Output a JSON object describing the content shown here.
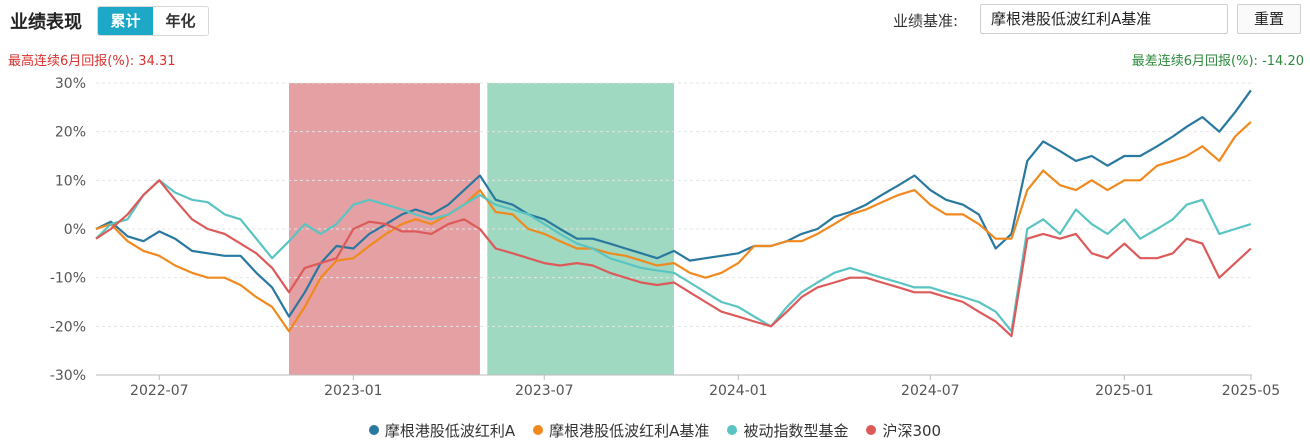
{
  "header": {
    "title": "业绩表现",
    "tabs": [
      {
        "label": "累计",
        "active": true
      },
      {
        "label": "年化",
        "active": false
      }
    ],
    "benchmark_label": "业绩基准:",
    "benchmark_value": "摩根港股低波红利A基准",
    "reset_label": "重置"
  },
  "stats": {
    "best_label": "最高连续6月回报(%):",
    "best_value": "34.31",
    "worst_label": "最差连续6月回报(%):",
    "worst_value": "-14.20"
  },
  "colors": {
    "fund": "#2878a0",
    "bench": "#f0891e",
    "passive": "#5ac4c2",
    "hs300": "#dc5a5a",
    "best_band": "#d9777a",
    "worst_band": "#6cc59f"
  },
  "chart_data": {
    "type": "line",
    "ylim": [
      -30,
      30
    ],
    "yticks": [
      -30,
      -20,
      -10,
      0,
      10,
      20,
      30
    ],
    "ytick_labels": [
      "-30%",
      "-20%",
      "-10%",
      "0%",
      "10%",
      "20%",
      "30%"
    ],
    "xlim": [
      "2022-05-02",
      "2025-05-02"
    ],
    "xticks": [
      "2022-07",
      "2023-01",
      "2023-07",
      "2024-01",
      "2024-07",
      "2025-01",
      "2025-05"
    ],
    "xtick_dates": [
      "2022-07-01",
      "2023-01-01",
      "2023-07-01",
      "2024-01-01",
      "2024-07-01",
      "2025-01-01",
      "2025-05-01"
    ],
    "highlight_best": [
      "2022-11-01",
      "2023-05-01"
    ],
    "highlight_worst": [
      "2023-05-08",
      "2023-11-01"
    ],
    "dates": [
      "2022-05-02",
      "2022-05-16",
      "2022-06-01",
      "2022-06-16",
      "2022-07-01",
      "2022-07-16",
      "2022-08-01",
      "2022-08-16",
      "2022-09-01",
      "2022-09-16",
      "2022-10-01",
      "2022-10-16",
      "2022-11-01",
      "2022-11-16",
      "2022-12-01",
      "2022-12-16",
      "2023-01-01",
      "2023-01-16",
      "2023-02-01",
      "2023-02-16",
      "2023-03-01",
      "2023-03-16",
      "2023-04-01",
      "2023-04-16",
      "2023-05-01",
      "2023-05-16",
      "2023-06-01",
      "2023-06-16",
      "2023-07-01",
      "2023-07-16",
      "2023-08-01",
      "2023-08-16",
      "2023-09-01",
      "2023-09-16",
      "2023-10-01",
      "2023-10-16",
      "2023-11-01",
      "2023-11-16",
      "2023-12-01",
      "2023-12-16",
      "2024-01-01",
      "2024-01-16",
      "2024-02-01",
      "2024-02-16",
      "2024-03-01",
      "2024-03-16",
      "2024-04-01",
      "2024-04-16",
      "2024-05-01",
      "2024-05-16",
      "2024-06-01",
      "2024-06-16",
      "2024-07-01",
      "2024-07-16",
      "2024-08-01",
      "2024-08-16",
      "2024-09-01",
      "2024-09-16",
      "2024-10-01",
      "2024-10-16",
      "2024-11-01",
      "2024-11-16",
      "2024-12-01",
      "2024-12-16",
      "2025-01-01",
      "2025-01-16",
      "2025-02-01",
      "2025-02-16",
      "2025-03-01",
      "2025-03-16",
      "2025-04-01",
      "2025-04-16",
      "2025-05-01"
    ],
    "series": [
      {
        "name": "摩根港股低波红利A",
        "color": "#2878a0",
        "values": [
          0,
          1.5,
          -1.5,
          -2.5,
          -0.5,
          -2,
          -4.5,
          -5,
          -5.5,
          -5.5,
          -9,
          -12,
          -18,
          -13,
          -7,
          -3.5,
          -4,
          -1,
          1,
          3,
          4,
          3,
          5,
          8,
          11,
          6,
          5,
          3,
          2,
          0,
          -2,
          -2,
          -3,
          -4,
          -5,
          -6,
          -4.5,
          -6.5,
          -6,
          -5.5,
          -5,
          -3.5,
          -3.5,
          -2.5,
          -1,
          0,
          2.5,
          3.5,
          5,
          7,
          9,
          11,
          8,
          6,
          5,
          3,
          -4,
          -1,
          14,
          18,
          16,
          14,
          15,
          13,
          15,
          15,
          17,
          19,
          21,
          23,
          20,
          24,
          28.5
        ]
      },
      {
        "name": "摩根港股低波红利A基准",
        "color": "#f0891e",
        "values": [
          0,
          1,
          -2.5,
          -4.5,
          -5.5,
          -7.5,
          -9,
          -10,
          -10,
          -11.5,
          -14,
          -16,
          -21,
          -16,
          -10,
          -6.5,
          -6,
          -3.5,
          -1,
          1,
          2,
          1,
          3,
          5,
          8,
          3.5,
          3,
          0,
          -1,
          -2.5,
          -4,
          -4,
          -5,
          -5.5,
          -6.5,
          -7.5,
          -7,
          -9,
          -10,
          -9,
          -7,
          -3.5,
          -3.5,
          -2.5,
          -2.5,
          -1,
          1,
          3,
          4,
          5.5,
          7,
          8,
          5,
          3,
          3,
          1,
          -2,
          -2,
          8,
          12,
          9,
          8,
          10,
          8,
          10,
          10,
          13,
          14,
          15,
          17,
          14,
          19,
          22
        ]
      },
      {
        "name": "被动指数型基金",
        "color": "#5ac4c2",
        "values": [
          -2,
          1,
          2,
          7,
          10,
          7.5,
          6,
          5.5,
          3,
          2,
          -2,
          -6,
          -2.5,
          1,
          -1,
          1,
          5,
          6,
          5,
          4,
          3,
          2,
          3,
          5,
          7,
          5,
          4,
          3,
          1,
          -1,
          -3,
          -4,
          -6,
          -7,
          -8,
          -8.5,
          -9,
          -11,
          -13,
          -15,
          -16,
          -18,
          -20,
          -16,
          -13,
          -11,
          -9,
          -8,
          -9,
          -10,
          -11,
          -12,
          -12,
          -13,
          -14,
          -15,
          -17,
          -21,
          0,
          2,
          -1,
          4,
          1,
          -1,
          2,
          -2,
          0,
          2,
          5,
          6,
          -1,
          0,
          1
        ]
      },
      {
        "name": "沪深300",
        "color": "#dc5a5a",
        "values": [
          -2,
          0,
          3,
          7,
          10,
          6,
          2,
          0,
          -1,
          -3,
          -5,
          -8,
          -13,
          -8,
          -7,
          -6,
          0,
          1.5,
          1,
          -0.5,
          -0.5,
          -1,
          1,
          2,
          0,
          -4,
          -5,
          -6,
          -7,
          -7.5,
          -7,
          -7.5,
          -9,
          -10,
          -11,
          -11.5,
          -11,
          -13,
          -15,
          -17,
          -18,
          -19,
          -20,
          -17,
          -14,
          -12,
          -11,
          -10,
          -10,
          -11,
          -12,
          -13,
          -13,
          -14,
          -15,
          -17,
          -19,
          -22,
          -2,
          -1,
          -2,
          -1,
          -5,
          -6,
          -3,
          -6,
          -6,
          -5,
          -2,
          -3,
          -10,
          -7,
          -4
        ]
      }
    ]
  }
}
